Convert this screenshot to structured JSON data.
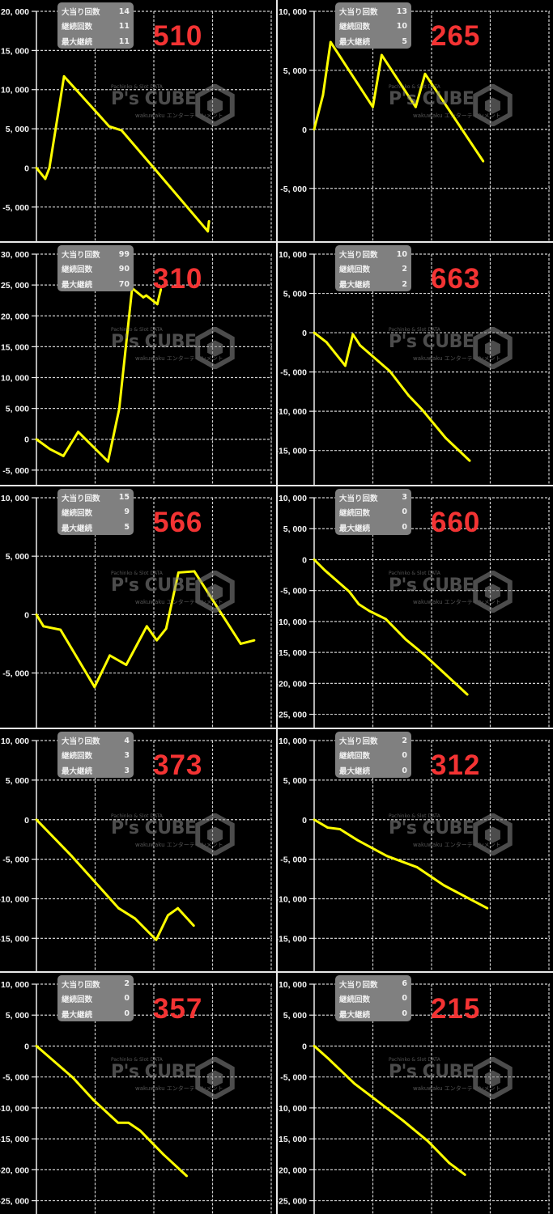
{
  "stat_labels": [
    "大当り回数",
    "継続回数",
    "最大継続"
  ],
  "watermark": {
    "top": "Pachinko & Slot DATA",
    "main": "P's CUBE",
    "sub": "wakuwaku エンターテインメント"
  },
  "colors": {
    "line": "#ffff00",
    "machine_number": "#f33333",
    "background": "#000000",
    "stats_box": "#808080",
    "grid": "#d0d0d0"
  },
  "panels": [
    {
      "machine": "510",
      "stats": [
        "14",
        "11",
        "11"
      ]
    },
    {
      "machine": "265",
      "stats": [
        "13",
        "10",
        "5"
      ]
    },
    {
      "machine": "310",
      "stats": [
        "99",
        "90",
        "70"
      ]
    },
    {
      "machine": "663",
      "stats": [
        "10",
        "2",
        "2"
      ]
    },
    {
      "machine": "566",
      "stats": [
        "15",
        "9",
        "5"
      ]
    },
    {
      "machine": "660",
      "stats": [
        "3",
        "0",
        "0"
      ]
    },
    {
      "machine": "373",
      "stats": [
        "4",
        "3",
        "3"
      ]
    },
    {
      "machine": "312",
      "stats": [
        "2",
        "0",
        "0"
      ]
    },
    {
      "machine": "357",
      "stats": [
        "2",
        "0",
        "0"
      ]
    },
    {
      "machine": "215",
      "stats": [
        "6",
        "0",
        "0"
      ]
    }
  ],
  "chart_data": [
    {
      "type": "line",
      "grid": true,
      "xlim": [
        0,
        4
      ],
      "ylim": [
        -9400,
        20000
      ],
      "yticks": [
        20000,
        15000,
        10000,
        5000,
        0,
        -5000
      ],
      "ytick_labels": [
        "20, 000",
        "15, 000",
        "10, 000",
        "5, 000",
        "0",
        "-5, 000"
      ],
      "x": [
        0,
        0.15,
        0.22,
        0.47,
        1.24,
        1.45,
        2.0,
        2.92,
        2.94
      ],
      "y": [
        0,
        -1400,
        0,
        11700,
        5300,
        4800,
        0,
        -8100,
        -6800
      ]
    },
    {
      "type": "line",
      "grid": true,
      "xlim": [
        0,
        4
      ],
      "ylim": [
        -9500,
        10000
      ],
      "yticks": [
        10000,
        5000,
        0,
        -5000
      ],
      "ytick_labels": [
        "10, 000",
        "5, 000",
        "0",
        "-5, 000"
      ],
      "x": [
        0,
        0.15,
        0.28,
        1.0,
        1.15,
        1.73,
        1.89,
        2.88
      ],
      "y": [
        0,
        2900,
        7400,
        1900,
        6300,
        1900,
        4700,
        -2700
      ]
    },
    {
      "type": "line",
      "grid": true,
      "xlim": [
        0,
        4
      ],
      "ylim": [
        -7300,
        30000
      ],
      "yticks": [
        30000,
        25000,
        20000,
        15000,
        10000,
        5000,
        0,
        -5000
      ],
      "ytick_labels": [
        "30, 000",
        "25, 000",
        "20, 000",
        "15, 000",
        "10, 000",
        "5, 000",
        "0",
        "-5, 000"
      ],
      "x": [
        0,
        0.23,
        0.46,
        0.71,
        1.22,
        1.41,
        1.63,
        1.82,
        1.87,
        2.06,
        2.12
      ],
      "y": [
        0,
        -1600,
        -2700,
        1200,
        -3600,
        4900,
        24500,
        23000,
        23300,
        21900,
        24300
      ]
    },
    {
      "type": "line",
      "grid": true,
      "xlim": [
        0,
        4
      ],
      "ylim": [
        -19300,
        10000
      ],
      "yticks": [
        10000,
        5000,
        0,
        -5000,
        -10000,
        -15000
      ],
      "ytick_labels": [
        "10, 000",
        "5, 000",
        "0",
        "-5, 000",
        "-10, 000",
        "-15, 000"
      ],
      "x": [
        0,
        0.21,
        0.53,
        0.66,
        0.78,
        1.29,
        1.61,
        1.84,
        2.24,
        2.65
      ],
      "y": [
        0,
        -1200,
        -4200,
        -200,
        -1600,
        -4900,
        -8000,
        -9800,
        -13400,
        -16300
      ]
    },
    {
      "type": "line",
      "grid": true,
      "xlim": [
        0,
        4
      ],
      "ylim": [
        -9700,
        10000
      ],
      "yticks": [
        10000,
        5000,
        0,
        -5000
      ],
      "ytick_labels": [
        "10, 000",
        "5, 000",
        "0",
        "-5, 000"
      ],
      "x": [
        0,
        0.12,
        0.41,
        0.99,
        1.25,
        1.53,
        1.88,
        2.05,
        2.21,
        2.42,
        2.69,
        3.48,
        3.71
      ],
      "y": [
        0,
        -1000,
        -1300,
        -6200,
        -3500,
        -4300,
        -1000,
        -2200,
        -1200,
        3600,
        3700,
        -2500,
        -2200
      ]
    },
    {
      "type": "line",
      "grid": true,
      "xlim": [
        0,
        4
      ],
      "ylim": [
        -27200,
        10000
      ],
      "yticks": [
        10000,
        5000,
        0,
        -5000,
        -10000,
        -15000,
        -20000,
        -25000
      ],
      "ytick_labels": [
        "10, 000",
        "5, 000",
        "0",
        "-5, 000",
        "-10, 000",
        "-15, 000",
        "-20, 000",
        "-25, 000"
      ],
      "x": [
        0,
        0.18,
        0.6,
        0.76,
        0.94,
        1.22,
        1.56,
        1.88,
        2.2,
        2.61
      ],
      "y": [
        0,
        -1700,
        -5200,
        -7200,
        -8300,
        -9600,
        -12900,
        -15400,
        -18200,
        -21800
      ]
    },
    {
      "type": "line",
      "grid": true,
      "xlim": [
        0,
        4
      ],
      "ylim": [
        -19100,
        10000
      ],
      "yticks": [
        10000,
        5000,
        0,
        -5000,
        -10000,
        -15000
      ],
      "ytick_labels": [
        "10, 000",
        "5, 000",
        "0",
        "-5, 000",
        "-10, 000",
        "-15, 000"
      ],
      "x": [
        0,
        0.6,
        1.4,
        1.68,
        2.04,
        2.24,
        2.41,
        2.68
      ],
      "y": [
        0,
        -4600,
        -11200,
        -12500,
        -15200,
        -12100,
        -11200,
        -13400
      ]
    },
    {
      "type": "line",
      "grid": true,
      "xlim": [
        0,
        4
      ],
      "ylim": [
        -19100,
        10000
      ],
      "yticks": [
        10000,
        5000,
        0,
        -5000,
        -10000,
        -15000
      ],
      "ytick_labels": [
        "10, 000",
        "5, 000",
        "0",
        "-5, 000",
        "-10, 000",
        "-15, 000"
      ],
      "x": [
        0,
        0.23,
        0.44,
        0.74,
        1.24,
        1.75,
        2.21,
        2.95
      ],
      "y": [
        0,
        -1000,
        -1200,
        -2600,
        -4600,
        -6000,
        -8300,
        -11200
      ]
    },
    {
      "type": "line",
      "grid": true,
      "xlim": [
        0,
        4
      ],
      "ylim": [
        -27200,
        10000
      ],
      "yticks": [
        10000,
        5000,
        0,
        -5000,
        -10000,
        -15000,
        -20000,
        -25000
      ],
      "ytick_labels": [
        "10, 000",
        "5, 000",
        "0",
        "-5, 000",
        "-10, 000",
        "-15, 000",
        "-20, 000",
        "-25, 000"
      ],
      "x": [
        0,
        0.62,
        0.97,
        1.39,
        1.57,
        1.77,
        2.16,
        2.56
      ],
      "y": [
        0,
        -5100,
        -8700,
        -12400,
        -12400,
        -13700,
        -17500,
        -21000
      ]
    },
    {
      "type": "line",
      "grid": true,
      "xlim": [
        0,
        4
      ],
      "ylim": [
        -27200,
        10000
      ],
      "yticks": [
        10000,
        5000,
        0,
        -5000,
        -10000,
        -15000,
        -20000,
        -25000
      ],
      "ytick_labels": [
        "10, 000",
        "5, 000",
        "0",
        "-5, 000",
        "-10, 000",
        "-15, 000",
        "-20, 000",
        "-25, 000"
      ],
      "x": [
        0,
        0.25,
        0.69,
        0.97,
        1.52,
        1.94,
        2.3,
        2.57
      ],
      "y": [
        0,
        -2100,
        -6100,
        -8100,
        -12100,
        -15400,
        -18900,
        -20800
      ]
    }
  ]
}
